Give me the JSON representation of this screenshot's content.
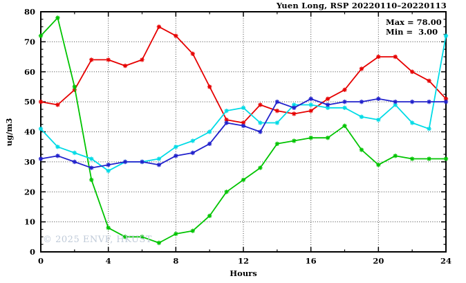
{
  "figure": {
    "title": "Yuen Long, RSP 20220110–20220113",
    "stats": {
      "max_label": "Max = 78.00",
      "min_label": "Min =  3.00"
    },
    "watermark": "© 2025 ENVF, HKUST"
  },
  "chart_data": {
    "type": "line",
    "title": "Yuen Long, RSP 20220110–20220113",
    "xlabel": "Hours",
    "ylabel": "ug/m3",
    "xlim": [
      0,
      24
    ],
    "ylim": [
      0,
      80
    ],
    "grid": true,
    "legend": "none",
    "marker": "asterisk",
    "annotations": [
      "Max = 78.00",
      "Min =  3.00"
    ],
    "x": [
      0,
      1,
      2,
      3,
      4,
      5,
      6,
      7,
      8,
      9,
      10,
      11,
      12,
      13,
      14,
      15,
      16,
      17,
      18,
      19,
      20,
      21,
      22,
      23,
      24
    ],
    "series": [
      {
        "name": "red-line",
        "color": "#e60000",
        "values": [
          50,
          49,
          54,
          64,
          64,
          62,
          64,
          75,
          72,
          66,
          55,
          44,
          43,
          49,
          47,
          46,
          47,
          51,
          54,
          61,
          65,
          65,
          60,
          57,
          51
        ]
      },
      {
        "name": "green-line",
        "color": "#00c400",
        "values": [
          72,
          78,
          55,
          24,
          8,
          5,
          5,
          3,
          6,
          7,
          12,
          20,
          24,
          28,
          36,
          37,
          38,
          38,
          42,
          34,
          29,
          32,
          31,
          31,
          31
        ]
      },
      {
        "name": "cyan-line",
        "color": "#00dbe6",
        "values": [
          41,
          35,
          33,
          31,
          27,
          30,
          30,
          31,
          35,
          37,
          40,
          47,
          48,
          43,
          43,
          49,
          49,
          48,
          48,
          45,
          44,
          49,
          43,
          41,
          72
        ]
      },
      {
        "name": "blue-line",
        "color": "#2121cc",
        "values": [
          31,
          32,
          30,
          28,
          29,
          30,
          30,
          29,
          32,
          33,
          36,
          43,
          42,
          40,
          50,
          48,
          51,
          49,
          50,
          50,
          51,
          50,
          50,
          50,
          50
        ]
      }
    ],
    "x_major_ticks": [
      0,
      4,
      8,
      12,
      16,
      20,
      24
    ],
    "x_minor_step": 2,
    "y_major_ticks": [
      0,
      10,
      20,
      30,
      40,
      50,
      60,
      70,
      80
    ],
    "y_minor_step": 2.5,
    "x_gridlines": [
      4,
      8,
      12,
      16,
      20
    ],
    "y_gridlines": [
      10,
      20,
      30,
      40,
      50,
      60,
      70
    ]
  }
}
